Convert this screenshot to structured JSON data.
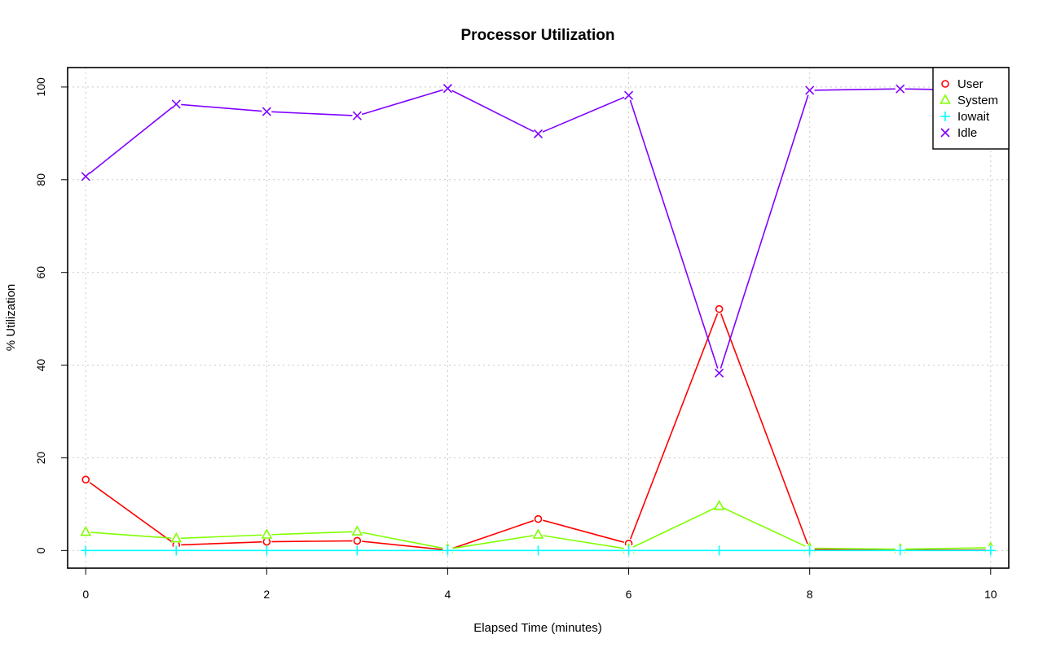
{
  "chart_data": {
    "type": "line",
    "title": "Processor Utilization",
    "xlabel": "Elapsed Time (minutes)",
    "ylabel": "% Utilization",
    "xlim": [
      -0.2,
      10.2
    ],
    "ylim": [
      -3.8,
      104.2
    ],
    "xticks": [
      0,
      2,
      4,
      6,
      8,
      10
    ],
    "yticks": [
      0,
      20,
      40,
      60,
      80,
      100
    ],
    "grid": true,
    "legend_position": "top-right",
    "x": [
      0,
      1,
      2,
      3,
      4,
      5,
      6,
      7,
      8,
      9,
      10
    ],
    "series": [
      {
        "name": "User",
        "color": "#ff0000",
        "marker": "circle",
        "values": [
          15.3,
          1.2,
          1.9,
          2.1,
          0.1,
          6.8,
          1.5,
          52.1,
          0.2,
          0.1,
          0.1
        ]
      },
      {
        "name": "System",
        "color": "#80ff00",
        "marker": "triangle",
        "values": [
          4.0,
          2.6,
          3.4,
          4.1,
          0.3,
          3.4,
          0.3,
          9.6,
          0.5,
          0.3,
          0.6
        ]
      },
      {
        "name": "Iowait",
        "color": "#00ffff",
        "marker": "plus",
        "values": [
          0,
          0,
          0,
          0,
          0,
          0,
          0,
          0,
          0,
          0,
          0
        ]
      },
      {
        "name": "Idle",
        "color": "#8000ff",
        "marker": "x",
        "values": [
          80.7,
          96.3,
          94.7,
          93.8,
          99.7,
          89.9,
          98.2,
          38.3,
          99.3,
          99.6,
          99.3
        ]
      }
    ]
  }
}
